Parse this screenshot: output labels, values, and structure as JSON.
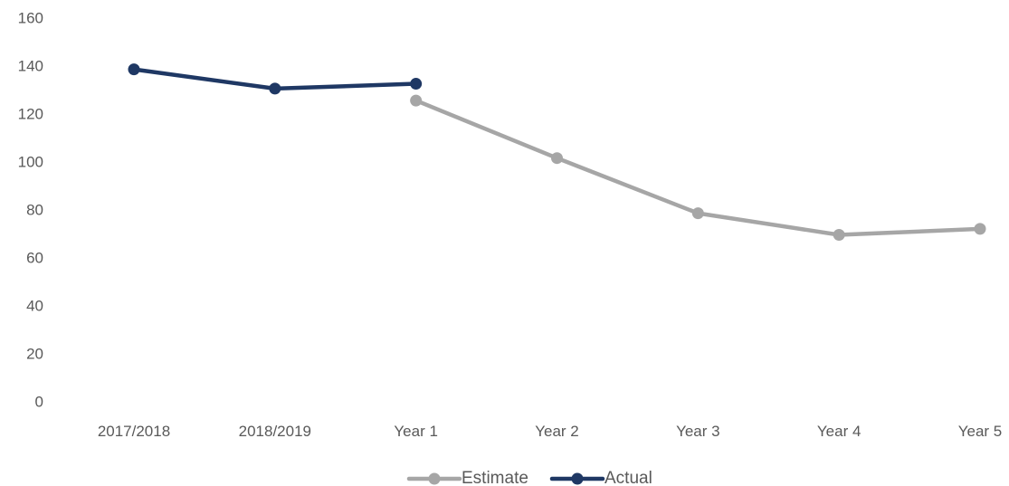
{
  "chart_data": {
    "type": "line",
    "categories": [
      "2017/2018",
      "2018/2019",
      "Year 1",
      "Year 2",
      "Year 3",
      "Year 4",
      "Year 5"
    ],
    "series": [
      {
        "name": "Estimate",
        "color": "#a6a6a6",
        "values": [
          null,
          null,
          126,
          102,
          79,
          70,
          72.5
        ]
      },
      {
        "name": "Actual",
        "color": "#1f3864",
        "values": [
          139,
          131,
          133,
          null,
          null,
          null,
          null
        ]
      }
    ],
    "ylim": [
      0,
      160
    ],
    "yticks": [
      0,
      20,
      40,
      60,
      80,
      100,
      120,
      140,
      160
    ],
    "grid": false,
    "legend_position": "bottom-center",
    "title": "",
    "xlabel": "",
    "ylabel": ""
  }
}
